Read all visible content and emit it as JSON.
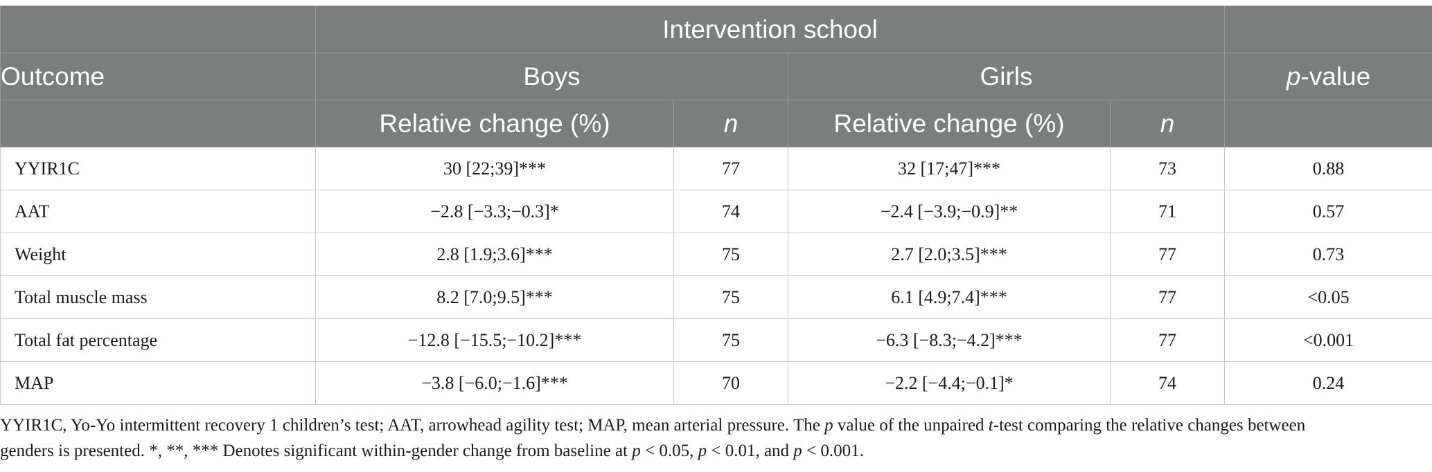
{
  "header": {
    "group_title": "Intervention school",
    "outcome_label": "Outcome",
    "boys_label": "Boys",
    "girls_label": "Girls",
    "pvalue_italic": "p",
    "pvalue_rest": "-value",
    "rel_change_label": "Relative change (%)",
    "n_label": "n"
  },
  "rows": [
    {
      "outcome": "YYIR1C",
      "boys_change": "30 [22;39]***",
      "boys_n": "77",
      "girls_change": "32 [17;47]***",
      "girls_n": "73",
      "p": "0.88"
    },
    {
      "outcome": "AAT",
      "boys_change": "−2.8 [−3.3;−0.3]*",
      "boys_n": "74",
      "girls_change": "−2.4 [−3.9;−0.9]**",
      "girls_n": "71",
      "p": "0.57"
    },
    {
      "outcome": "Weight",
      "boys_change": "2.8 [1.9;3.6]***",
      "boys_n": "75",
      "girls_change": "2.7 [2.0;3.5]***",
      "girls_n": "77",
      "p": "0.73"
    },
    {
      "outcome": "Total muscle mass",
      "boys_change": "8.2 [7.0;9.5]***",
      "boys_n": "75",
      "girls_change": "6.1 [4.9;7.4]***",
      "girls_n": "77",
      "p": "<0.05"
    },
    {
      "outcome": "Total fat percentage",
      "boys_change": "−12.8 [−15.5;−10.2]***",
      "boys_n": "75",
      "girls_change": "−6.3 [−8.3;−4.2]***",
      "girls_n": "77",
      "p": "<0.001"
    },
    {
      "outcome": "MAP",
      "boys_change": "−3.8 [−6.0;−1.6]***",
      "boys_n": "70",
      "girls_change": "−2.2 [−4.4;−0.1]*",
      "girls_n": "74",
      "p": "0.24"
    }
  ],
  "footnote": {
    "s1": "YYIR1C, Yo-Yo intermittent recovery 1 children’s test; AAT, arrowhead agility test; MAP, mean arterial pressure. The ",
    "p1": "p",
    "s2": " value of the unpaired ",
    "t1": "t",
    "s3": "-test comparing the relative changes between",
    "s4": "genders is presented. *, **, *** Denotes significant within-gender change from baseline at ",
    "p2": "p",
    "s5": " < 0.05, ",
    "p3": "p",
    "s6": " < 0.01, and ",
    "p4": "p",
    "s7": " < 0.001."
  }
}
